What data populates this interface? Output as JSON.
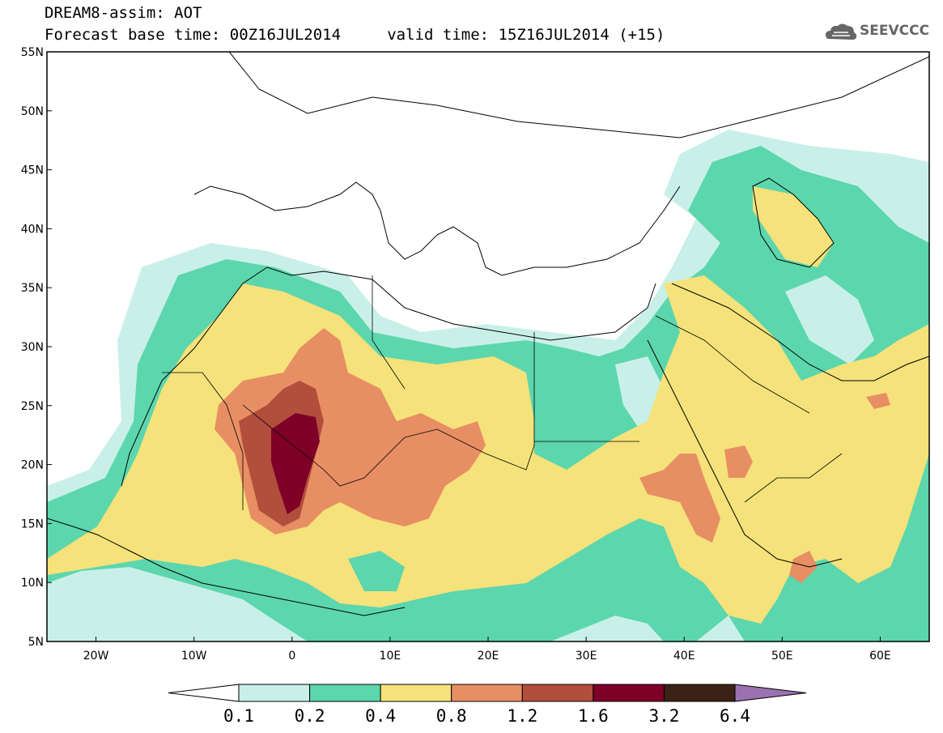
{
  "header": {
    "title_line1": "DREAM8-assim: AOT",
    "title_line2": "Forecast base time: 00Z16JUL2014     valid time: 15Z16JUL2014 (+15)",
    "logo_text": "SEEVCCC"
  },
  "map": {
    "lon_range": [
      -25,
      65
    ],
    "lat_range": [
      5,
      55
    ],
    "lat_ticks": [
      "55N",
      "50N",
      "45N",
      "40N",
      "35N",
      "30N",
      "25N",
      "20N",
      "15N",
      "10N",
      "5N"
    ],
    "lon_ticks": [
      "20W",
      "10W",
      "0",
      "10E",
      "20E",
      "30E",
      "40E",
      "50E",
      "60E"
    ],
    "variable": "AOT"
  },
  "legend": {
    "labels": [
      "0.1",
      "0.2",
      "0.4",
      "0.8",
      "1.2",
      "1.6",
      "3.2",
      "6.4"
    ],
    "colors": {
      "below_0.1": "#ffffff",
      "0.1-0.2": "#c9f0e8",
      "0.2-0.4": "#5cd6ad",
      "0.4-0.8": "#f5e27a",
      "0.8-1.2": "#e88e64",
      "1.2-1.6": "#b24e3c",
      "1.6-3.2": "#7e0028",
      "3.2-6.4": "#3b2214",
      "above_6.4": "#9a72b0"
    }
  }
}
